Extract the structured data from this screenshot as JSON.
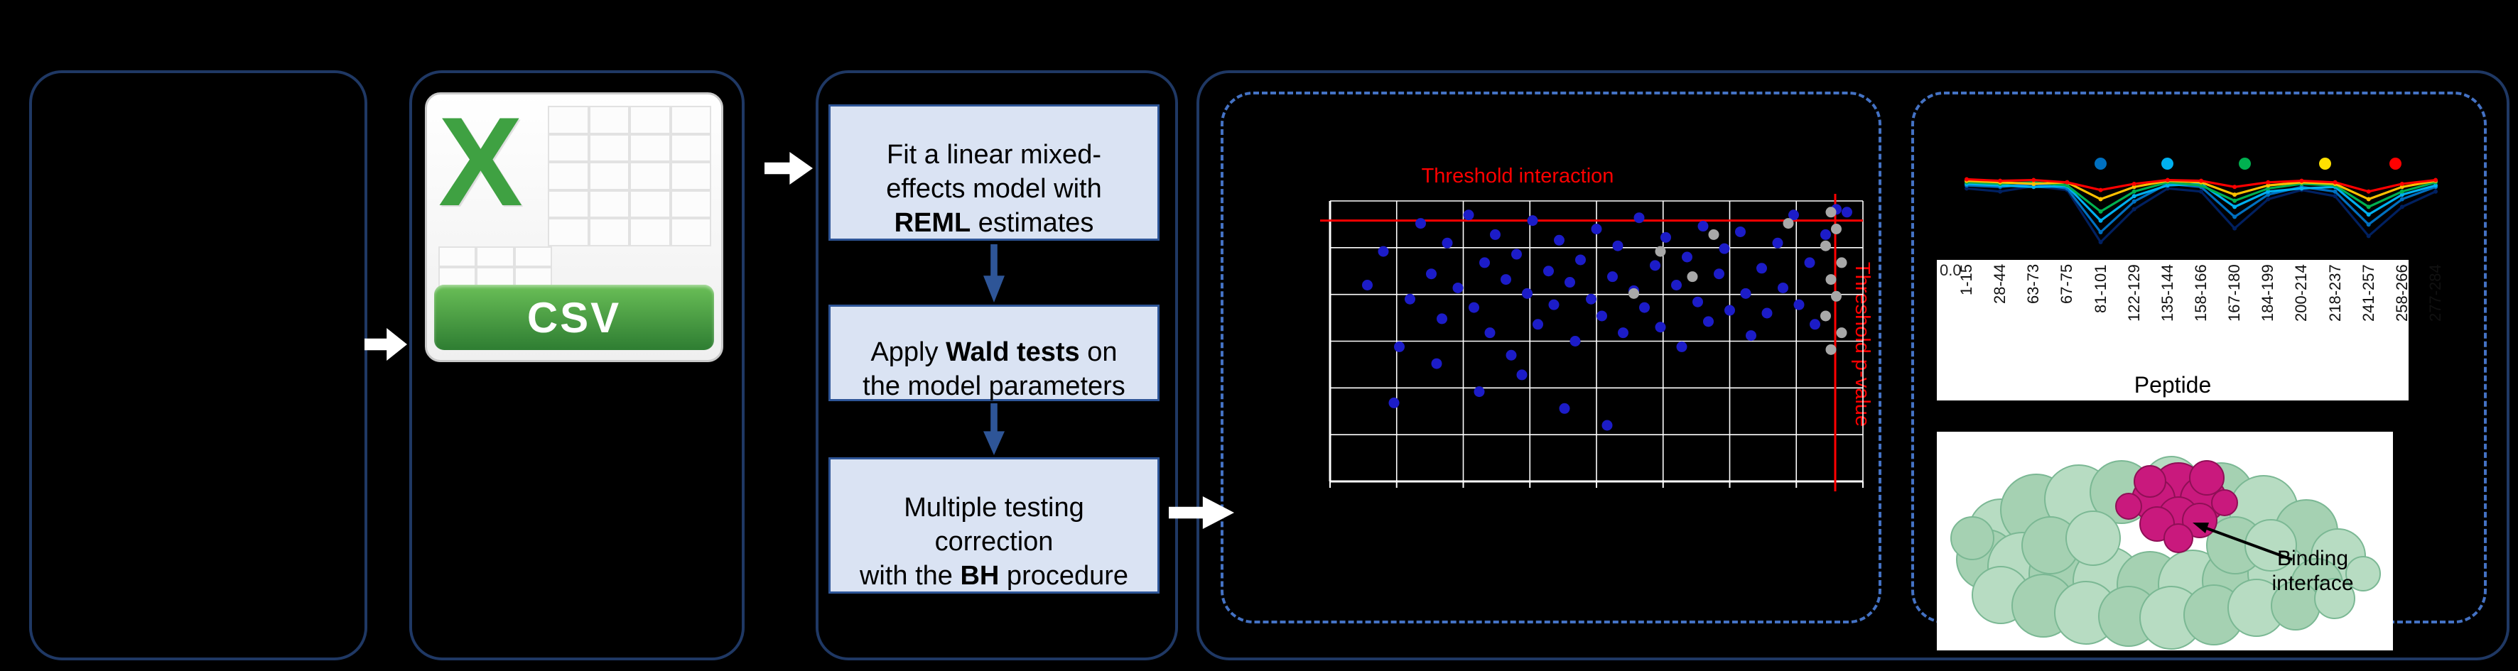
{
  "colors": {
    "background": "#000000",
    "panel_border": "#1f3864",
    "dashed_border": "#4472c4",
    "step_fill": "#dae3f3",
    "step_border": "#2e5597",
    "threshold_red": "#ff0000",
    "scatter_blue": "#1c1cc8",
    "scatter_gray": "#a8a8a8",
    "csv_green": "#3fa142",
    "protein_green": "#aed6bb",
    "protein_magenta": "#c9197d"
  },
  "csv_icon": {
    "letter": "X",
    "label": "CSV"
  },
  "steps": [
    {
      "pre": "Fit a linear mixed-\neffects model with\n",
      "bold": "REML",
      "post": " estimates"
    },
    {
      "pre": "Apply ",
      "bold": "Wald tests",
      "post": " on\nthe model parameters"
    },
    {
      "pre": "Multiple testing\ncorrection\nwith the ",
      "bold": "BH",
      "post": " procedure"
    }
  ],
  "chart_data": [
    {
      "type": "scatter",
      "title": "Threshold interaction",
      "side_label": "Threshold p-value",
      "xlabel": "",
      "ylabel": "",
      "note": "axis tick labels too small to read in source; point coords are fractions of plot area (y measured downward)",
      "grid": true,
      "threshold_h_frac": 0.07,
      "threshold_v_frac": 0.948,
      "series": [
        {
          "name": "interaction-points-blue",
          "color": "#1c1cc8",
          "points": [
            [
              0.07,
              0.3
            ],
            [
              0.1,
              0.18
            ],
            [
              0.13,
              0.52
            ],
            [
              0.15,
              0.35
            ],
            [
              0.17,
              0.08
            ],
            [
              0.19,
              0.26
            ],
            [
              0.21,
              0.42
            ],
            [
              0.22,
              0.15
            ],
            [
              0.24,
              0.31
            ],
            [
              0.26,
              0.05
            ],
            [
              0.27,
              0.38
            ],
            [
              0.29,
              0.22
            ],
            [
              0.3,
              0.47
            ],
            [
              0.31,
              0.12
            ],
            [
              0.33,
              0.28
            ],
            [
              0.34,
              0.55
            ],
            [
              0.35,
              0.19
            ],
            [
              0.37,
              0.33
            ],
            [
              0.38,
              0.07
            ],
            [
              0.39,
              0.44
            ],
            [
              0.41,
              0.25
            ],
            [
              0.42,
              0.37
            ],
            [
              0.43,
              0.14
            ],
            [
              0.45,
              0.29
            ],
            [
              0.46,
              0.5
            ],
            [
              0.47,
              0.21
            ],
            [
              0.49,
              0.35
            ],
            [
              0.5,
              0.1
            ],
            [
              0.51,
              0.41
            ],
            [
              0.53,
              0.27
            ],
            [
              0.54,
              0.16
            ],
            [
              0.55,
              0.47
            ],
            [
              0.57,
              0.32
            ],
            [
              0.58,
              0.06
            ],
            [
              0.59,
              0.38
            ],
            [
              0.61,
              0.23
            ],
            [
              0.62,
              0.45
            ],
            [
              0.63,
              0.13
            ],
            [
              0.65,
              0.3
            ],
            [
              0.66,
              0.52
            ],
            [
              0.67,
              0.2
            ],
            [
              0.69,
              0.36
            ],
            [
              0.7,
              0.09
            ],
            [
              0.71,
              0.43
            ],
            [
              0.73,
              0.26
            ],
            [
              0.74,
              0.17
            ],
            [
              0.75,
              0.39
            ],
            [
              0.77,
              0.11
            ],
            [
              0.78,
              0.33
            ],
            [
              0.79,
              0.48
            ],
            [
              0.81,
              0.24
            ],
            [
              0.82,
              0.4
            ],
            [
              0.84,
              0.15
            ],
            [
              0.85,
              0.31
            ],
            [
              0.87,
              0.05
            ],
            [
              0.88,
              0.37
            ],
            [
              0.9,
              0.22
            ],
            [
              0.91,
              0.44
            ],
            [
              0.93,
              0.12
            ],
            [
              0.95,
              0.03
            ],
            [
              0.28,
              0.68
            ],
            [
              0.44,
              0.74
            ],
            [
              0.36,
              0.62
            ],
            [
              0.52,
              0.8
            ],
            [
              0.2,
              0.58
            ],
            [
              0.12,
              0.72
            ],
            [
              0.97,
              0.04
            ]
          ]
        },
        {
          "name": "interaction-points-gray",
          "color": "#a8a8a8",
          "points": [
            [
              0.94,
              0.04
            ],
            [
              0.95,
              0.1
            ],
            [
              0.93,
              0.16
            ],
            [
              0.96,
              0.22
            ],
            [
              0.94,
              0.28
            ],
            [
              0.95,
              0.34
            ],
            [
              0.93,
              0.41
            ],
            [
              0.96,
              0.47
            ],
            [
              0.94,
              0.53
            ],
            [
              0.62,
              0.18
            ],
            [
              0.68,
              0.27
            ],
            [
              0.57,
              0.33
            ],
            [
              0.72,
              0.12
            ],
            [
              0.86,
              0.08
            ]
          ]
        }
      ]
    },
    {
      "type": "line",
      "title": "",
      "xlabel": "Peptide",
      "ylabel": "",
      "y_tick": "0.0",
      "ylim": [
        0,
        1
      ],
      "categories": [
        "1-15",
        "28-44",
        "63-73",
        "67-75",
        "81-101",
        "122-129",
        "135-144",
        "158-166",
        "167-180",
        "184-199",
        "200-214",
        "218-237",
        "241-257",
        "258-266",
        "277-284"
      ],
      "series": [
        {
          "name": "profile-navy",
          "color": "#002060",
          "values": [
            0.82,
            0.78,
            0.85,
            0.8,
            0.12,
            0.55,
            0.82,
            0.78,
            0.3,
            0.68,
            0.8,
            0.72,
            0.2,
            0.58,
            0.78
          ]
        },
        {
          "name": "profile-blue",
          "color": "#0070c0",
          "values": [
            0.86,
            0.84,
            0.88,
            0.82,
            0.25,
            0.65,
            0.88,
            0.84,
            0.45,
            0.74,
            0.84,
            0.78,
            0.35,
            0.68,
            0.84
          ]
        },
        {
          "name": "profile-cyan",
          "color": "#00b0f0",
          "values": [
            0.88,
            0.86,
            0.84,
            0.85,
            0.4,
            0.72,
            0.86,
            0.88,
            0.58,
            0.78,
            0.82,
            0.84,
            0.48,
            0.74,
            0.86
          ]
        },
        {
          "name": "profile-green",
          "color": "#00b050",
          "values": [
            0.9,
            0.88,
            0.9,
            0.86,
            0.52,
            0.78,
            0.9,
            0.86,
            0.66,
            0.82,
            0.88,
            0.86,
            0.58,
            0.78,
            0.9
          ]
        },
        {
          "name": "profile-orange",
          "color": "#ffc000",
          "values": [
            0.92,
            0.9,
            0.88,
            0.9,
            0.68,
            0.84,
            0.92,
            0.9,
            0.74,
            0.86,
            0.9,
            0.88,
            0.68,
            0.84,
            0.92
          ]
        },
        {
          "name": "profile-red",
          "color": "#ff0000",
          "values": [
            0.94,
            0.92,
            0.93,
            0.9,
            0.8,
            0.88,
            0.93,
            0.92,
            0.84,
            0.9,
            0.92,
            0.9,
            0.78,
            0.88,
            0.93
          ]
        }
      ],
      "markers": [
        {
          "color": "#0070c0",
          "x": 4
        },
        {
          "color": "#00b0f0",
          "x": 6
        },
        {
          "color": "#00b050",
          "x": 8.3
        },
        {
          "color": "#ffe000",
          "x": 10.7
        },
        {
          "color": "#ff0000",
          "x": 12.8
        }
      ],
      "legend_position": "none"
    }
  ],
  "protein": {
    "caption": "Binding interface"
  }
}
